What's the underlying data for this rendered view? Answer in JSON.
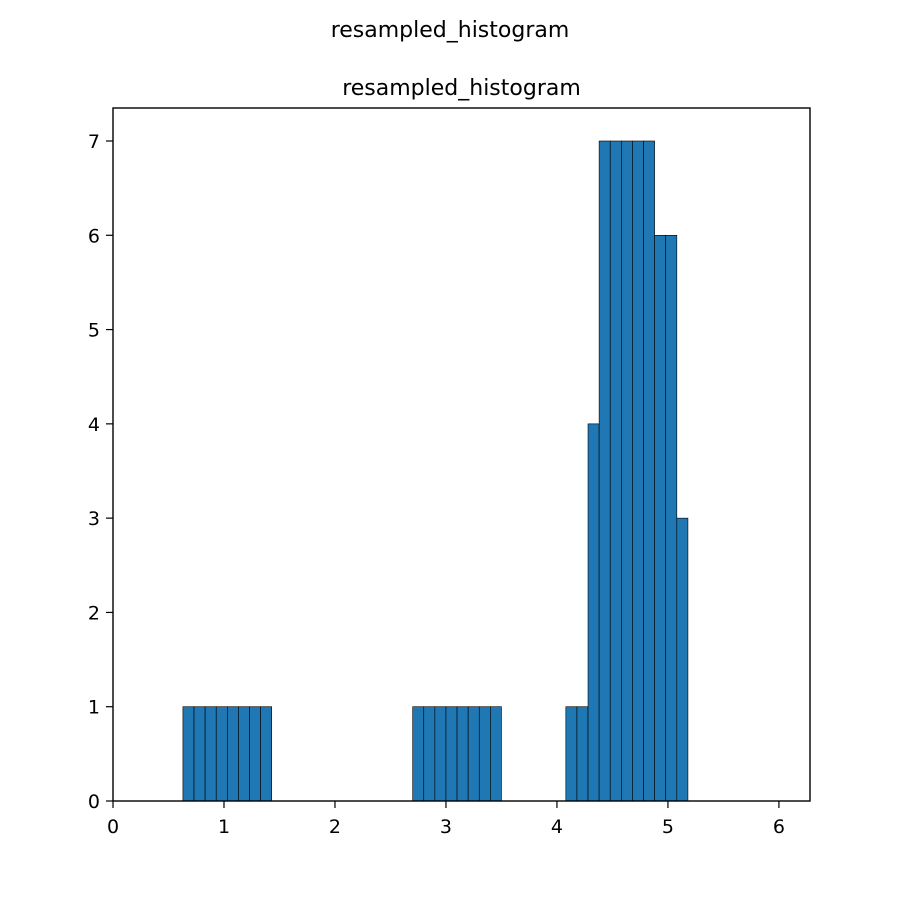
{
  "figure": {
    "suptitle": "resampled_histogram"
  },
  "chart_data": {
    "type": "bar",
    "title": "resampled_histogram",
    "xlabel": "",
    "ylabel": "",
    "xlim": [
      0,
      6.28
    ],
    "ylim": [
      0,
      7.35
    ],
    "xticks": [
      0,
      1,
      2,
      3,
      4,
      5,
      6
    ],
    "yticks": [
      0,
      1,
      2,
      3,
      4,
      5,
      6,
      7
    ],
    "grid": false,
    "bar_color": "#1f77b4",
    "edge_color": "#000000",
    "bins": [
      {
        "x0": 0.63,
        "x1": 0.73,
        "count": 1
      },
      {
        "x0": 0.73,
        "x1": 0.83,
        "count": 1
      },
      {
        "x0": 0.83,
        "x1": 0.93,
        "count": 1
      },
      {
        "x0": 0.93,
        "x1": 1.03,
        "count": 1
      },
      {
        "x0": 1.03,
        "x1": 1.13,
        "count": 1
      },
      {
        "x0": 1.13,
        "x1": 1.23,
        "count": 1
      },
      {
        "x0": 1.23,
        "x1": 1.33,
        "count": 1
      },
      {
        "x0": 1.33,
        "x1": 1.43,
        "count": 1
      },
      {
        "x0": 2.7,
        "x1": 2.8,
        "count": 1
      },
      {
        "x0": 2.8,
        "x1": 2.9,
        "count": 1
      },
      {
        "x0": 2.9,
        "x1": 3.0,
        "count": 1
      },
      {
        "x0": 3.0,
        "x1": 3.1,
        "count": 1
      },
      {
        "x0": 3.1,
        "x1": 3.2,
        "count": 1
      },
      {
        "x0": 3.2,
        "x1": 3.3,
        "count": 1
      },
      {
        "x0": 3.3,
        "x1": 3.4,
        "count": 1
      },
      {
        "x0": 3.4,
        "x1": 3.5,
        "count": 1
      },
      {
        "x0": 4.08,
        "x1": 4.18,
        "count": 1
      },
      {
        "x0": 4.18,
        "x1": 4.28,
        "count": 1
      },
      {
        "x0": 4.28,
        "x1": 4.38,
        "count": 4
      },
      {
        "x0": 4.38,
        "x1": 4.48,
        "count": 7
      },
      {
        "x0": 4.48,
        "x1": 4.58,
        "count": 7
      },
      {
        "x0": 4.58,
        "x1": 4.68,
        "count": 7
      },
      {
        "x0": 4.68,
        "x1": 4.78,
        "count": 7
      },
      {
        "x0": 4.78,
        "x1": 4.88,
        "count": 7
      },
      {
        "x0": 4.88,
        "x1": 4.98,
        "count": 6
      },
      {
        "x0": 4.98,
        "x1": 5.08,
        "count": 6
      },
      {
        "x0": 5.08,
        "x1": 5.18,
        "count": 3
      }
    ]
  }
}
